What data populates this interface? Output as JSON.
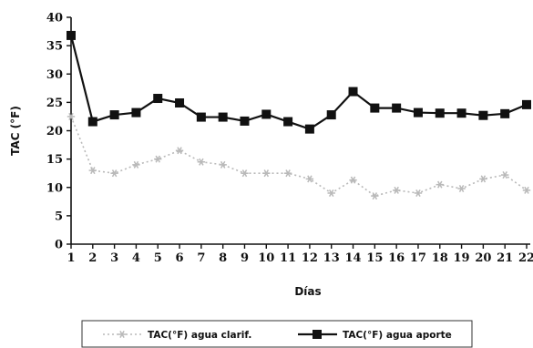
{
  "chart_data": {
    "type": "line",
    "xlabel": "Días",
    "ylabel": "TAC (°F)",
    "x": [
      1,
      2,
      3,
      4,
      5,
      6,
      7,
      8,
      9,
      10,
      11,
      12,
      13,
      14,
      15,
      16,
      17,
      18,
      19,
      20,
      21,
      22
    ],
    "x_tick_labels": [
      "1",
      "2",
      "3",
      "4",
      "5",
      "6",
      "7",
      "8",
      "9",
      "10",
      "11",
      "12",
      "13",
      "14",
      "15",
      "16",
      "17",
      "18",
      "19",
      "20",
      "21",
      "22"
    ],
    "ylim": [
      0,
      40
    ],
    "y_ticks": [
      0,
      5,
      10,
      15,
      20,
      25,
      30,
      35,
      40
    ],
    "y_tick_labels": [
      "0",
      "5",
      "10",
      "15",
      "20",
      "25",
      "30",
      "35",
      "40"
    ],
    "grid": false,
    "legend_position": "bottom",
    "series": [
      {
        "name": "TAC(°F) agua clarif.",
        "color": "#b9b9b9",
        "marker": "asterisk",
        "line_style": "dotted",
        "values": [
          22.5,
          13,
          12.5,
          14,
          15,
          16.5,
          14.5,
          14,
          12.5,
          12.5,
          12.5,
          11.5,
          9,
          11.3,
          8.5,
          9.5,
          9,
          10.5,
          9.8,
          11.5,
          12.2,
          9.5
        ]
      },
      {
        "name": "TAC(°F) agua aporte",
        "color": "#111111",
        "marker": "square",
        "line_style": "solid",
        "values": [
          36.8,
          21.6,
          22.8,
          23.2,
          25.7,
          24.9,
          22.4,
          22.4,
          21.7,
          22.9,
          21.6,
          20.3,
          22.8,
          26.9,
          24,
          24,
          23.2,
          23.1,
          23.1,
          22.7,
          23,
          24.6
        ]
      }
    ]
  }
}
